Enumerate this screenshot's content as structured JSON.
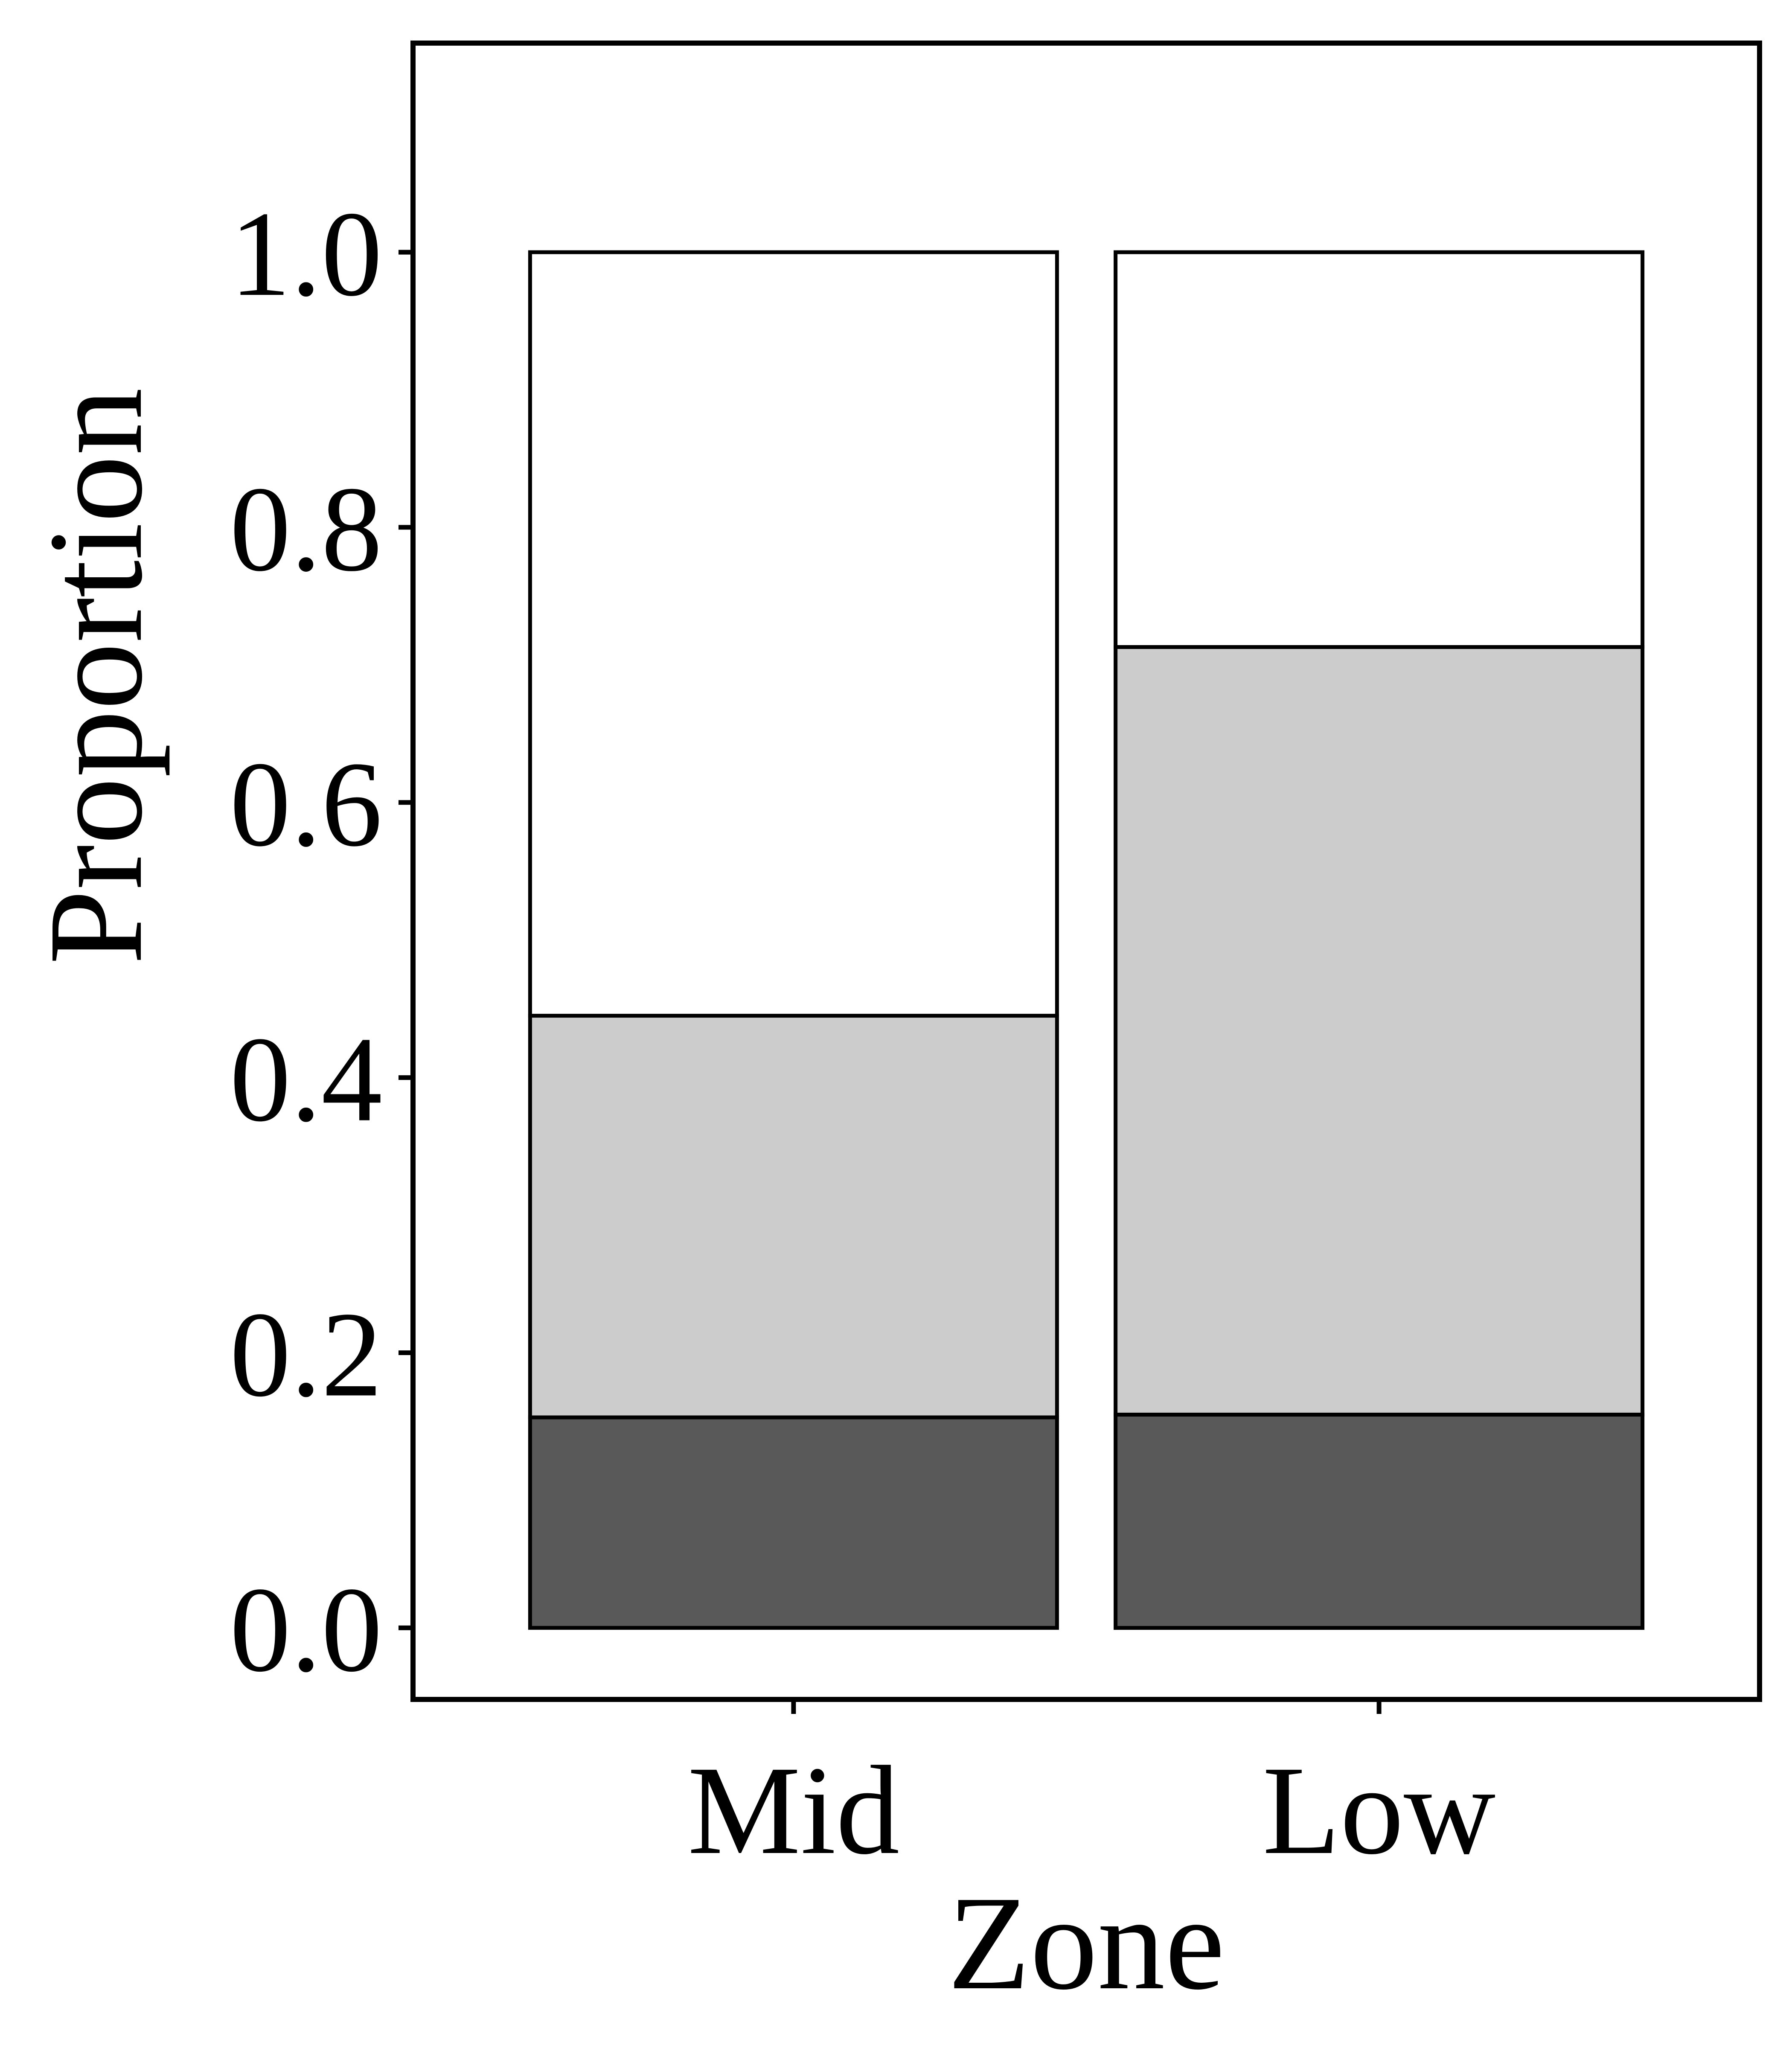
{
  "chart_data": {
    "type": "bar",
    "stacked": true,
    "title": "",
    "xlabel": "Zone",
    "ylabel": "Proportion",
    "categories": [
      "Mid",
      "Low"
    ],
    "series": [
      {
        "values": [
          0.153,
          0.155
        ],
        "color": "#595959"
      },
      {
        "values": [
          0.292,
          0.558
        ],
        "color": "#cccccc"
      },
      {
        "values": [
          0.555,
          0.287
        ],
        "color": "#ffffff"
      }
    ],
    "ylim": [
      -0.052,
      1.152
    ],
    "yticks": [
      "0.0",
      "0.2",
      "0.4",
      "0.6",
      "0.8",
      "1.0"
    ],
    "grid": false,
    "legend": "none"
  }
}
